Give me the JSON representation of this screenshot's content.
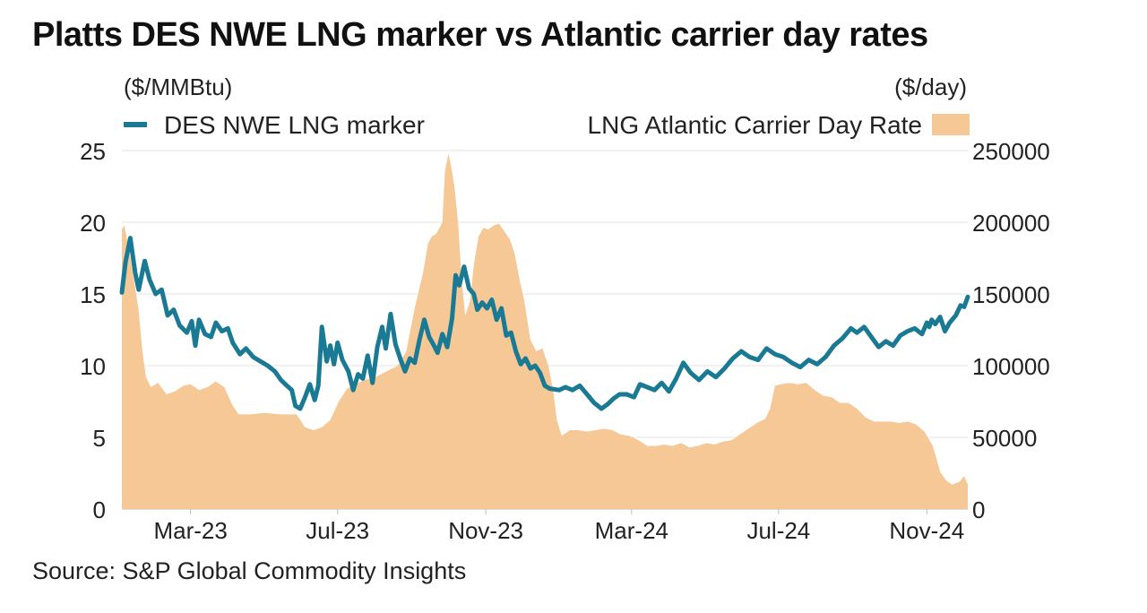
{
  "title": "Platts DES NWE LNG marker vs Atlantic carrier day rates",
  "source": "Source: S&P Global Commodity Insights",
  "chart_data": {
    "type": "line+area",
    "title": "Platts DES NWE LNG marker vs Atlantic carrier day rates",
    "left_axis": {
      "unit": "($/MMBtu)",
      "range": [
        0,
        25
      ],
      "ticks": [
        "0",
        "5",
        "10",
        "15",
        "20",
        "25"
      ]
    },
    "right_axis": {
      "unit": "($/day)",
      "range": [
        0,
        250000
      ],
      "ticks": [
        "0",
        "50000",
        "100000",
        "150000",
        "200000",
        "250000"
      ]
    },
    "x_ticks": [
      {
        "label": "Mar-23",
        "date": "2023-03-01"
      },
      {
        "label": "Jul-23",
        "date": "2023-07-01"
      },
      {
        "label": "Nov-23",
        "date": "2023-11-01"
      },
      {
        "label": "Mar-24",
        "date": "2024-03-01"
      },
      {
        "label": "Jul-24",
        "date": "2024-07-01"
      },
      {
        "label": "Nov-24",
        "date": "2024-11-01"
      }
    ],
    "x_range": [
      "2023-01-03",
      "2024-11-05"
    ],
    "grid": "horizontal",
    "legend_position": "top",
    "series": [
      {
        "name": "DES NWE LNG marker",
        "kind": "line",
        "axis": "left",
        "color": "#1a7a94",
        "points": [
          [
            "2023-01-03",
            15.1
          ],
          [
            "2023-01-06",
            17.2
          ],
          [
            "2023-01-10",
            18.9
          ],
          [
            "2023-01-14",
            16.5
          ],
          [
            "2023-01-17",
            15.3
          ],
          [
            "2023-01-22",
            17.3
          ],
          [
            "2023-01-26",
            16.0
          ],
          [
            "2023-01-31",
            15.0
          ],
          [
            "2023-02-05",
            15.3
          ],
          [
            "2023-02-10",
            13.5
          ],
          [
            "2023-02-15",
            13.9
          ],
          [
            "2023-02-20",
            12.8
          ],
          [
            "2023-02-26",
            12.3
          ],
          [
            "2023-03-02",
            13.1
          ],
          [
            "2023-03-05",
            11.4
          ],
          [
            "2023-03-08",
            13.2
          ],
          [
            "2023-03-13",
            12.2
          ],
          [
            "2023-03-18",
            12.0
          ],
          [
            "2023-03-22",
            13.0
          ],
          [
            "2023-03-27",
            12.4
          ],
          [
            "2023-04-01",
            12.6
          ],
          [
            "2023-04-05",
            11.6
          ],
          [
            "2023-04-11",
            10.8
          ],
          [
            "2023-04-16",
            11.2
          ],
          [
            "2023-04-22",
            10.6
          ],
          [
            "2023-04-28",
            10.3
          ],
          [
            "2023-05-04",
            10.0
          ],
          [
            "2023-05-10",
            9.6
          ],
          [
            "2023-05-15",
            9.0
          ],
          [
            "2023-05-20",
            8.6
          ],
          [
            "2023-05-24",
            8.3
          ],
          [
            "2023-05-27",
            7.2
          ],
          [
            "2023-05-31",
            7.0
          ],
          [
            "2023-06-04",
            7.8
          ],
          [
            "2023-06-08",
            8.7
          ],
          [
            "2023-06-12",
            7.6
          ],
          [
            "2023-06-15",
            8.6
          ],
          [
            "2023-06-18",
            12.7
          ],
          [
            "2023-06-22",
            10.3
          ],
          [
            "2023-06-25",
            11.4
          ],
          [
            "2023-06-28",
            10.1
          ],
          [
            "2023-07-01",
            11.6
          ],
          [
            "2023-07-05",
            10.4
          ],
          [
            "2023-07-10",
            9.6
          ],
          [
            "2023-07-14",
            8.3
          ],
          [
            "2023-07-18",
            9.4
          ],
          [
            "2023-07-22",
            9.1
          ],
          [
            "2023-07-26",
            10.7
          ],
          [
            "2023-07-30",
            8.8
          ],
          [
            "2023-08-03",
            11.3
          ],
          [
            "2023-08-07",
            12.7
          ],
          [
            "2023-08-10",
            11.2
          ],
          [
            "2023-08-14",
            13.6
          ],
          [
            "2023-08-18",
            11.5
          ],
          [
            "2023-08-22",
            10.5
          ],
          [
            "2023-08-26",
            9.6
          ],
          [
            "2023-08-30",
            10.5
          ],
          [
            "2023-09-03",
            10.2
          ],
          [
            "2023-09-07",
            11.8
          ],
          [
            "2023-09-11",
            13.2
          ],
          [
            "2023-09-15",
            12.0
          ],
          [
            "2023-09-19",
            11.4
          ],
          [
            "2023-09-22",
            10.9
          ],
          [
            "2023-09-26",
            12.2
          ],
          [
            "2023-09-30",
            11.3
          ],
          [
            "2023-10-04",
            13.3
          ],
          [
            "2023-10-07",
            16.3
          ],
          [
            "2023-10-10",
            15.6
          ],
          [
            "2023-10-14",
            16.9
          ],
          [
            "2023-10-18",
            15.4
          ],
          [
            "2023-10-22",
            15.0
          ],
          [
            "2023-10-25",
            13.9
          ],
          [
            "2023-10-29",
            14.4
          ],
          [
            "2023-11-02",
            14.0
          ],
          [
            "2023-11-06",
            14.6
          ],
          [
            "2023-11-10",
            13.2
          ],
          [
            "2023-11-14",
            14.0
          ],
          [
            "2023-11-18",
            12.1
          ],
          [
            "2023-11-22",
            12.3
          ],
          [
            "2023-11-26",
            11.0
          ],
          [
            "2023-11-30",
            10.1
          ],
          [
            "2023-12-04",
            10.5
          ],
          [
            "2023-12-08",
            9.8
          ],
          [
            "2023-12-12",
            10.0
          ],
          [
            "2023-12-16",
            9.5
          ],
          [
            "2023-12-20",
            8.6
          ],
          [
            "2023-12-24",
            8.4
          ],
          [
            "2024-01-01",
            8.3
          ],
          [
            "2024-01-06",
            8.5
          ],
          [
            "2024-01-12",
            8.3
          ],
          [
            "2024-01-18",
            8.6
          ],
          [
            "2024-01-24",
            8.0
          ],
          [
            "2024-01-30",
            7.4
          ],
          [
            "2024-02-05",
            7.0
          ],
          [
            "2024-02-10",
            7.3
          ],
          [
            "2024-02-15",
            7.7
          ],
          [
            "2024-02-20",
            8.0
          ],
          [
            "2024-02-26",
            8.0
          ],
          [
            "2024-03-03",
            7.8
          ],
          [
            "2024-03-08",
            8.7
          ],
          [
            "2024-03-14",
            8.5
          ],
          [
            "2024-03-20",
            8.3
          ],
          [
            "2024-03-26",
            8.8
          ],
          [
            "2024-04-01",
            8.2
          ],
          [
            "2024-04-07",
            9.1
          ],
          [
            "2024-04-13",
            10.2
          ],
          [
            "2024-04-19",
            9.5
          ],
          [
            "2024-04-26",
            9.0
          ],
          [
            "2024-05-03",
            9.6
          ],
          [
            "2024-05-10",
            9.2
          ],
          [
            "2024-05-17",
            9.8
          ],
          [
            "2024-05-24",
            10.5
          ],
          [
            "2024-05-31",
            11.0
          ],
          [
            "2024-06-07",
            10.6
          ],
          [
            "2024-06-14",
            10.4
          ],
          [
            "2024-06-21",
            11.2
          ],
          [
            "2024-06-28",
            10.8
          ],
          [
            "2024-07-05",
            10.6
          ],
          [
            "2024-07-12",
            10.2
          ],
          [
            "2024-07-19",
            9.9
          ],
          [
            "2024-07-26",
            10.4
          ],
          [
            "2024-08-02",
            10.1
          ],
          [
            "2024-08-09",
            10.6
          ],
          [
            "2024-08-16",
            11.4
          ],
          [
            "2024-08-23",
            11.9
          ],
          [
            "2024-08-30",
            12.6
          ],
          [
            "2024-09-04",
            12.3
          ],
          [
            "2024-09-10",
            12.7
          ],
          [
            "2024-09-16",
            12.0
          ],
          [
            "2024-09-22",
            11.3
          ],
          [
            "2024-09-28",
            11.7
          ],
          [
            "2024-10-04",
            11.4
          ],
          [
            "2024-10-10",
            12.1
          ],
          [
            "2024-10-16",
            12.4
          ],
          [
            "2024-10-22",
            12.6
          ],
          [
            "2024-10-28",
            12.2
          ],
          [
            "2024-11-01",
            13.0
          ],
          [
            "2024-11-03",
            12.7
          ],
          [
            "2024-11-05",
            13.2
          ],
          [
            "2024-11-08",
            12.9
          ],
          [
            "2024-11-12",
            13.4
          ],
          [
            "2024-11-16",
            12.4
          ],
          [
            "2024-11-20",
            13.0
          ],
          [
            "2024-11-25",
            13.5
          ],
          [
            "2024-11-29",
            14.2
          ],
          [
            "2024-12-02",
            14.1
          ],
          [
            "2024-12-05",
            14.8
          ]
        ]
      },
      {
        "name": "LNG Atlantic Carrier Day Rate",
        "kind": "area",
        "axis": "right",
        "color": "#f5c896",
        "points": [
          [
            "2023-01-03",
            195000
          ],
          [
            "2023-01-05",
            198000
          ],
          [
            "2023-01-09",
            180000
          ],
          [
            "2023-01-13",
            160000
          ],
          [
            "2023-01-17",
            138000
          ],
          [
            "2023-01-20",
            110000
          ],
          [
            "2023-01-23",
            92000
          ],
          [
            "2023-01-27",
            85000
          ],
          [
            "2023-02-02",
            88000
          ],
          [
            "2023-02-09",
            80000
          ],
          [
            "2023-02-16",
            82000
          ],
          [
            "2023-02-23",
            86000
          ],
          [
            "2023-03-01",
            87000
          ],
          [
            "2023-03-08",
            83000
          ],
          [
            "2023-03-15",
            85000
          ],
          [
            "2023-03-22",
            89000
          ],
          [
            "2023-03-29",
            85000
          ],
          [
            "2023-04-05",
            72000
          ],
          [
            "2023-04-10",
            66000
          ],
          [
            "2023-04-20",
            66000
          ],
          [
            "2023-05-01",
            67000
          ],
          [
            "2023-05-15",
            66000
          ],
          [
            "2023-05-28",
            66000
          ],
          [
            "2023-06-04",
            57000
          ],
          [
            "2023-06-11",
            55000
          ],
          [
            "2023-06-18",
            57000
          ],
          [
            "2023-06-25",
            62000
          ],
          [
            "2023-07-02",
            75000
          ],
          [
            "2023-07-09",
            84000
          ],
          [
            "2023-07-16",
            87000
          ],
          [
            "2023-07-23",
            90000
          ],
          [
            "2023-07-30",
            91000
          ],
          [
            "2023-08-06",
            94000
          ],
          [
            "2023-08-13",
            97000
          ],
          [
            "2023-08-20",
            100000
          ],
          [
            "2023-08-27",
            110000
          ],
          [
            "2023-09-03",
            140000
          ],
          [
            "2023-09-10",
            165000
          ],
          [
            "2023-09-14",
            185000
          ],
          [
            "2023-09-17",
            190000
          ],
          [
            "2023-09-21",
            192000
          ],
          [
            "2023-09-26",
            200000
          ],
          [
            "2023-09-28",
            235000
          ],
          [
            "2023-10-01",
            248000
          ],
          [
            "2023-10-03",
            240000
          ],
          [
            "2023-10-06",
            225000
          ],
          [
            "2023-10-09",
            200000
          ],
          [
            "2023-10-12",
            160000
          ],
          [
            "2023-10-15",
            135000
          ],
          [
            "2023-10-19",
            145000
          ],
          [
            "2023-10-22",
            170000
          ],
          [
            "2023-10-26",
            190000
          ],
          [
            "2023-10-30",
            196000
          ],
          [
            "2023-11-03",
            195000
          ],
          [
            "2023-11-08",
            198000
          ],
          [
            "2023-11-12",
            199000
          ],
          [
            "2023-11-17",
            193000
          ],
          [
            "2023-11-21",
            188000
          ],
          [
            "2023-11-25",
            178000
          ],
          [
            "2023-11-29",
            160000
          ],
          [
            "2023-12-03",
            145000
          ],
          [
            "2023-12-08",
            118000
          ],
          [
            "2023-12-13",
            110000
          ],
          [
            "2023-12-18",
            112000
          ],
          [
            "2023-12-23",
            100000
          ],
          [
            "2023-12-27",
            82000
          ],
          [
            "2023-12-30",
            62000
          ],
          [
            "2024-01-03",
            51000
          ],
          [
            "2024-01-10",
            55000
          ],
          [
            "2024-01-17",
            55000
          ],
          [
            "2024-01-24",
            54000
          ],
          [
            "2024-01-31",
            55000
          ],
          [
            "2024-02-07",
            56000
          ],
          [
            "2024-02-14",
            55000
          ],
          [
            "2024-02-21",
            52000
          ],
          [
            "2024-02-28",
            51000
          ],
          [
            "2024-03-07",
            48000
          ],
          [
            "2024-03-14",
            44000
          ],
          [
            "2024-03-21",
            44000
          ],
          [
            "2024-03-28",
            45000
          ],
          [
            "2024-04-04",
            44000
          ],
          [
            "2024-04-11",
            46000
          ],
          [
            "2024-04-18",
            43000
          ],
          [
            "2024-04-25",
            44000
          ],
          [
            "2024-05-02",
            46000
          ],
          [
            "2024-05-09",
            45000
          ],
          [
            "2024-05-16",
            47000
          ],
          [
            "2024-05-23",
            48000
          ],
          [
            "2024-05-30",
            52000
          ],
          [
            "2024-06-06",
            56000
          ],
          [
            "2024-06-13",
            60000
          ],
          [
            "2024-06-20",
            63000
          ],
          [
            "2024-06-24",
            70000
          ],
          [
            "2024-06-28",
            86000
          ],
          [
            "2024-07-03",
            87000
          ],
          [
            "2024-07-10",
            88000
          ],
          [
            "2024-07-17",
            87000
          ],
          [
            "2024-07-24",
            88000
          ],
          [
            "2024-07-31",
            83000
          ],
          [
            "2024-08-07",
            79000
          ],
          [
            "2024-08-14",
            78000
          ],
          [
            "2024-08-21",
            74000
          ],
          [
            "2024-08-28",
            74000
          ],
          [
            "2024-09-04",
            70000
          ],
          [
            "2024-09-11",
            64000
          ],
          [
            "2024-09-18",
            61000
          ],
          [
            "2024-09-25",
            61000
          ],
          [
            "2024-10-02",
            61000
          ],
          [
            "2024-10-09",
            60000
          ],
          [
            "2024-10-16",
            61000
          ],
          [
            "2024-10-23",
            59000
          ],
          [
            "2024-10-30",
            54000
          ],
          [
            "2024-11-06",
            44000
          ],
          [
            "2024-11-12",
            26000
          ],
          [
            "2024-11-17",
            20000
          ],
          [
            "2024-11-22",
            17000
          ],
          [
            "2024-11-28",
            19000
          ],
          [
            "2024-12-02",
            23000
          ],
          [
            "2024-12-05",
            17000
          ]
        ]
      }
    ]
  }
}
